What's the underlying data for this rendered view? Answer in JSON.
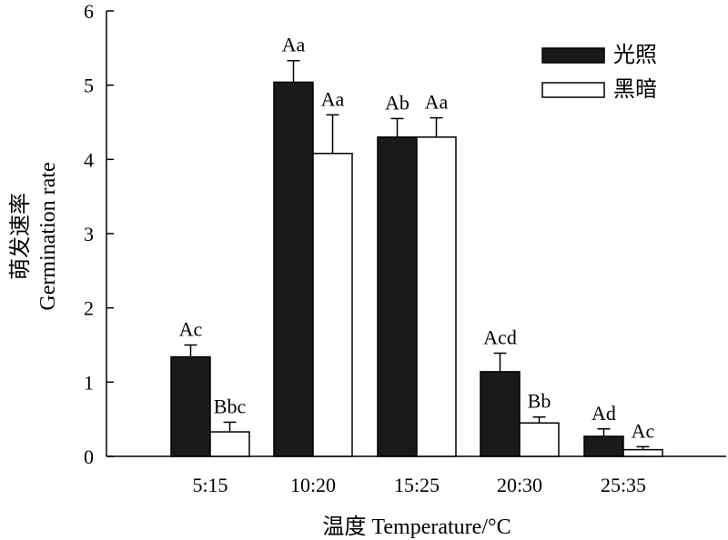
{
  "chart_data": {
    "type": "bar",
    "categories": [
      "5:15",
      "10:20",
      "15:25",
      "20:30",
      "25:35"
    ],
    "series": [
      {
        "name": "光照",
        "color": "#1a1a1a",
        "values": [
          1.34,
          5.04,
          4.3,
          1.14,
          0.27
        ],
        "errors": [
          0.16,
          0.29,
          0.25,
          0.25,
          0.1
        ],
        "labels": [
          "Ac",
          "Aa",
          "Ab",
          "Acd",
          "Ad"
        ]
      },
      {
        "name": "黑暗",
        "color": "#ffffff",
        "values": [
          0.33,
          4.08,
          4.3,
          0.45,
          0.09
        ],
        "errors": [
          0.13,
          0.52,
          0.26,
          0.08,
          0.04
        ],
        "labels": [
          "Bbc",
          "Aa",
          "Aa",
          "Bb",
          "Ac"
        ]
      }
    ],
    "xlabel": "温度 Temperature/°C",
    "ylabel_cn": "萌发速率",
    "ylabel_en": "Germination rate",
    "ylim": [
      0,
      6
    ],
    "yticks": [
      0,
      1,
      2,
      3,
      4,
      5,
      6
    ],
    "legend_position": "top-right",
    "grid": false
  }
}
